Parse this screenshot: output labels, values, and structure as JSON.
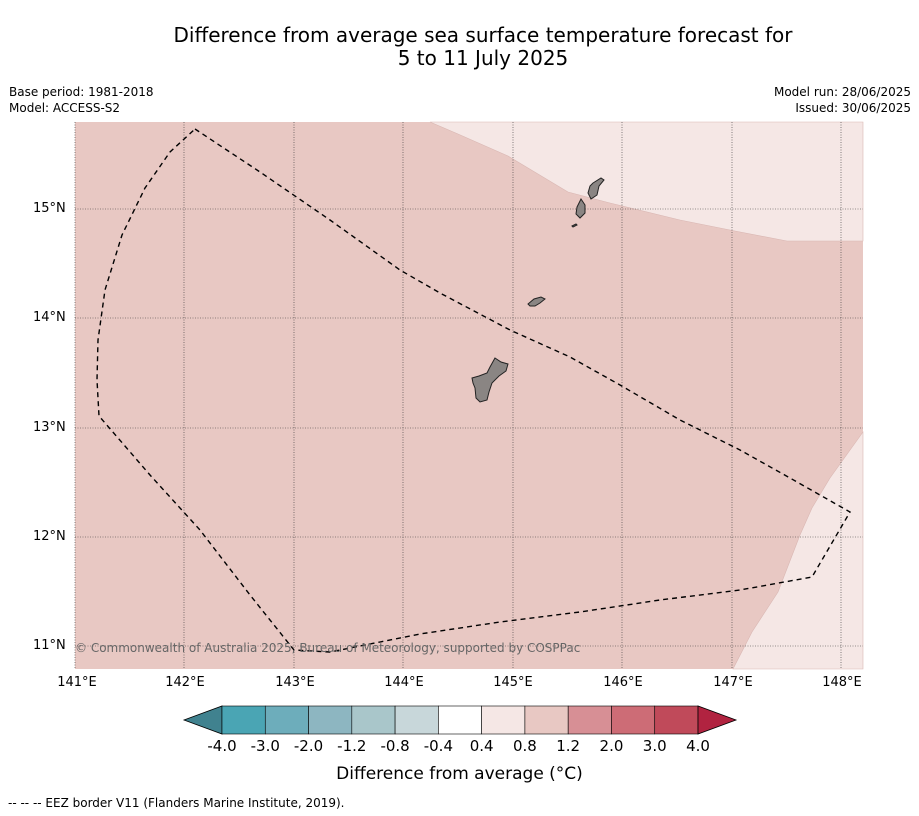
{
  "title": {
    "line1": "Difference from average sea surface temperature forecast for",
    "line2": "5 to 11 July 2025"
  },
  "meta": {
    "base_period": "Base period: 1981-2018",
    "model": "Model: ACCESS-S2",
    "model_run": "Model run: 28/06/2025",
    "issued": "Issued: 30/06/2025"
  },
  "map": {
    "latitude_labels": [
      "15°N",
      "14°N",
      "13°N",
      "12°N",
      "11°N"
    ],
    "longitude_labels": [
      "141°E",
      "142°E",
      "143°E",
      "144°E",
      "145°E",
      "146°E",
      "147°E",
      "148°E"
    ],
    "copyright": "© Commonwealth of Australia 2025, Bureau of Meteorology, supported by COSPPac",
    "colors": {
      "anomaly_0_4_to_0_8": "#f5e7e5",
      "anomaly_0_8_to_1_2": "#e8c8c3",
      "land": "#8a8583"
    }
  },
  "colorbar": {
    "ticks": [
      "-4.0",
      "-3.0",
      "-2.0",
      "-1.2",
      "-0.8",
      "-0.4",
      "0.4",
      "0.8",
      "1.2",
      "2.0",
      "3.0",
      "4.0"
    ],
    "colors": [
      "#40828f",
      "#4aa5b4",
      "#6dadbb",
      "#8db6c1",
      "#a9c6ca",
      "#c8d7da",
      "#ffffff",
      "#f5e7e5",
      "#e8c8c3",
      "#d78f95",
      "#cd6c76",
      "#c04a5a",
      "#b12340"
    ],
    "title": "Difference from average ($^\\circ$C)"
  },
  "footnote": "-- -- -- EEZ border V11 (Flanders Marine Institute, 2019)."
}
